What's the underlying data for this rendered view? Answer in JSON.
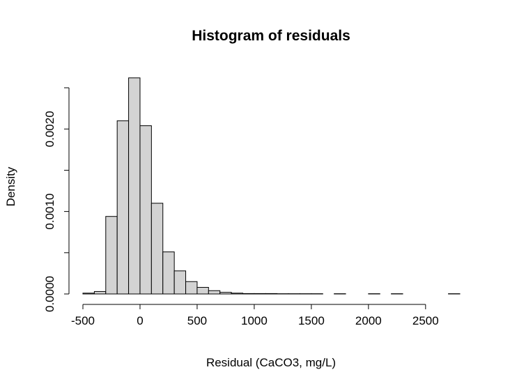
{
  "chart_data": {
    "type": "bar",
    "title": "Histogram of residuals",
    "xlabel": "Residual (CaCO3, mg/L)",
    "ylabel": "Density",
    "xlim": [
      -500,
      2800
    ],
    "ylim": [
      0,
      0.0025
    ],
    "x_ticks": [
      -500,
      0,
      500,
      1000,
      1500,
      2000,
      2500
    ],
    "x_tick_labels": [
      "-500",
      "0",
      "500",
      "1000",
      "1500",
      "2000",
      "2500"
    ],
    "y_ticks": [
      0,
      0.0005,
      0.001,
      0.0015,
      0.002,
      0.0025
    ],
    "y_tick_labels": [
      "0.0000",
      "",
      "0.0010",
      "",
      "0.0020",
      ""
    ],
    "bin_width": 100,
    "bins": [
      {
        "start": -500,
        "end": -400,
        "density": 1e-05
      },
      {
        "start": -400,
        "end": -300,
        "density": 3e-05
      },
      {
        "start": -300,
        "end": -200,
        "density": 0.00094
      },
      {
        "start": -200,
        "end": -100,
        "density": 0.0021
      },
      {
        "start": -100,
        "end": 0,
        "density": 0.00262
      },
      {
        "start": 0,
        "end": 100,
        "density": 0.00204
      },
      {
        "start": 100,
        "end": 200,
        "density": 0.0011
      },
      {
        "start": 200,
        "end": 300,
        "density": 0.00051
      },
      {
        "start": 300,
        "end": 400,
        "density": 0.00028
      },
      {
        "start": 400,
        "end": 500,
        "density": 0.00015
      },
      {
        "start": 500,
        "end": 600,
        "density": 8e-05
      },
      {
        "start": 600,
        "end": 700,
        "density": 4e-05
      },
      {
        "start": 700,
        "end": 800,
        "density": 2e-05
      },
      {
        "start": 800,
        "end": 900,
        "density": 1e-05
      },
      {
        "start": 900,
        "end": 1000,
        "density": 5e-06
      },
      {
        "start": 1000,
        "end": 1100,
        "density": 5e-06
      },
      {
        "start": 1100,
        "end": 1200,
        "density": 5e-06
      },
      {
        "start": 1200,
        "end": 1300,
        "density": 3e-06
      },
      {
        "start": 1300,
        "end": 1400,
        "density": 3e-06
      },
      {
        "start": 1400,
        "end": 1500,
        "density": 3e-06
      },
      {
        "start": 1500,
        "end": 1600,
        "density": 3e-06
      },
      {
        "start": 1600,
        "end": 1700,
        "density": 0
      },
      {
        "start": 1700,
        "end": 1800,
        "density": 3e-06
      },
      {
        "start": 1800,
        "end": 1900,
        "density": 0
      },
      {
        "start": 1900,
        "end": 2000,
        "density": 0
      },
      {
        "start": 2000,
        "end": 2100,
        "density": 3e-06
      },
      {
        "start": 2100,
        "end": 2200,
        "density": 0
      },
      {
        "start": 2200,
        "end": 2300,
        "density": 3e-06
      },
      {
        "start": 2300,
        "end": 2400,
        "density": 0
      },
      {
        "start": 2400,
        "end": 2500,
        "density": 0
      },
      {
        "start": 2500,
        "end": 2600,
        "density": 0
      },
      {
        "start": 2600,
        "end": 2700,
        "density": 0
      },
      {
        "start": 2700,
        "end": 2800,
        "density": 3e-06
      }
    ],
    "grid": false,
    "legend": "none",
    "colors": {
      "bar_fill": "#d3d3d3",
      "bar_stroke": "#000000"
    }
  }
}
